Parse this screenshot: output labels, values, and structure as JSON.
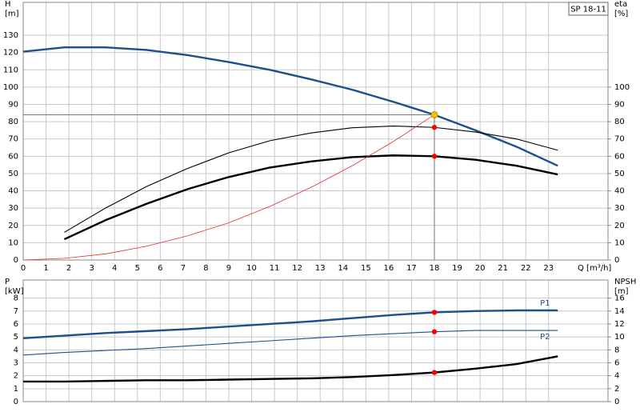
{
  "chart_data": [
    {
      "type": "line",
      "title": "SP 18-11",
      "ylabel": [
        "H",
        "[m]"
      ],
      "y2label": [
        "eta",
        "[%]"
      ],
      "xlabel": "Q [m³/h]",
      "x": [
        0,
        1.8,
        3.6,
        5.4,
        7.2,
        9,
        10.8,
        12.6,
        14.4,
        16.2,
        18,
        19.8,
        21.6,
        23.4
      ],
      "xlim": [
        0,
        25.6
      ],
      "xticks": [
        0,
        1,
        2,
        3,
        4,
        5,
        6,
        7,
        8,
        9,
        10,
        11,
        12,
        13,
        14,
        15,
        16,
        17,
        18,
        19,
        20,
        21,
        22,
        23
      ],
      "show_xtick_labels": true,
      "ylim": [
        0,
        149
      ],
      "yticks": [
        0,
        10,
        20,
        30,
        40,
        50,
        60,
        70,
        80,
        90,
        100,
        110,
        120,
        130
      ],
      "y2lim": [
        0,
        149
      ],
      "y2ticks": [
        0,
        10,
        20,
        30,
        40,
        50,
        60,
        70,
        80,
        90,
        100
      ],
      "grid": true,
      "series": [
        {
          "color": "#1f4e8c",
          "style": "thick",
          "values": [
            120.5,
            123,
            123,
            121.5,
            118.5,
            114.5,
            110,
            104.5,
            98.5,
            91.5,
            84,
            75,
            65.5,
            54.5
          ]
        },
        {
          "color": "#000000",
          "style": "thin",
          "axis": "y2",
          "values": [
            null,
            16,
            30,
            42.5,
            53,
            62,
            69,
            73.5,
            76.5,
            77.5,
            76.7,
            74,
            70,
            63.5
          ]
        },
        {
          "color": "#000000",
          "style": "thick",
          "axis": "y2",
          "values": [
            null,
            12,
            23,
            32.5,
            41,
            48,
            53.5,
            57,
            59.5,
            60.5,
            60,
            58,
            54.5,
            49.5
          ]
        },
        {
          "color": "#e03030",
          "style": "hair",
          "values": [
            0,
            1,
            3.5,
            8,
            14,
            21.5,
            31,
            42,
            54.5,
            68.5,
            84,
            null,
            null,
            null
          ]
        }
      ],
      "points": [
        {
          "x": 18,
          "y": 84,
          "color": "#f5c400",
          "crosshair": true
        },
        {
          "x": 18,
          "y": 76.7,
          "color": "#ff0000"
        },
        {
          "x": 18,
          "y": 60,
          "color": "#ff0000"
        }
      ]
    },
    {
      "type": "line",
      "ylabel": [
        "P",
        "[kW]"
      ],
      "y2label": [
        "NPSH",
        "[m]"
      ],
      "x": [
        0,
        1.8,
        3.6,
        5.4,
        7.2,
        9,
        10.8,
        12.6,
        14.4,
        16.2,
        18,
        19.8,
        21.6,
        23.4
      ],
      "xlim": [
        0,
        25.6
      ],
      "xticks": [
        0,
        1,
        2,
        3,
        4,
        5,
        6,
        7,
        8,
        9,
        10,
        11,
        12,
        13,
        14,
        15,
        16,
        17,
        18,
        19,
        20,
        21,
        22,
        23
      ],
      "show_xtick_labels": false,
      "ylim": [
        0,
        9.4
      ],
      "yticks": [
        0,
        1,
        2,
        3,
        4,
        5,
        6,
        7,
        8
      ],
      "y2lim": [
        0,
        18.8
      ],
      "y2ticks": [
        0,
        2,
        4,
        6,
        8,
        10,
        12,
        14,
        16
      ],
      "grid": true,
      "series": [
        {
          "name": "P1",
          "color": "#1f4e8c",
          "style": "thick",
          "values": [
            4.9,
            5.1,
            5.3,
            5.45,
            5.6,
            5.8,
            6.0,
            6.2,
            6.45,
            6.7,
            6.9,
            7.0,
            7.05,
            7.05
          ]
        },
        {
          "name": "P2",
          "color": "#1f4e8c",
          "style": "thin",
          "values": [
            3.6,
            3.8,
            3.95,
            4.1,
            4.3,
            4.5,
            4.7,
            4.9,
            5.1,
            5.25,
            5.4,
            5.5,
            5.5,
            5.5
          ]
        },
        {
          "color": "#000000",
          "style": "thick",
          "axis": "y2",
          "values": [
            3.1,
            3.1,
            3.2,
            3.3,
            3.3,
            3.4,
            3.5,
            3.6,
            3.8,
            4.1,
            4.5,
            5.1,
            5.8,
            7.0
          ]
        }
      ],
      "points": [
        {
          "x": 18,
          "y": 6.9,
          "color": "#ff0000"
        },
        {
          "x": 18,
          "y": 5.4,
          "color": "#ff0000"
        },
        {
          "x": 18,
          "y": 4.5,
          "color": "#ff0000",
          "axis": "y2"
        }
      ]
    }
  ]
}
